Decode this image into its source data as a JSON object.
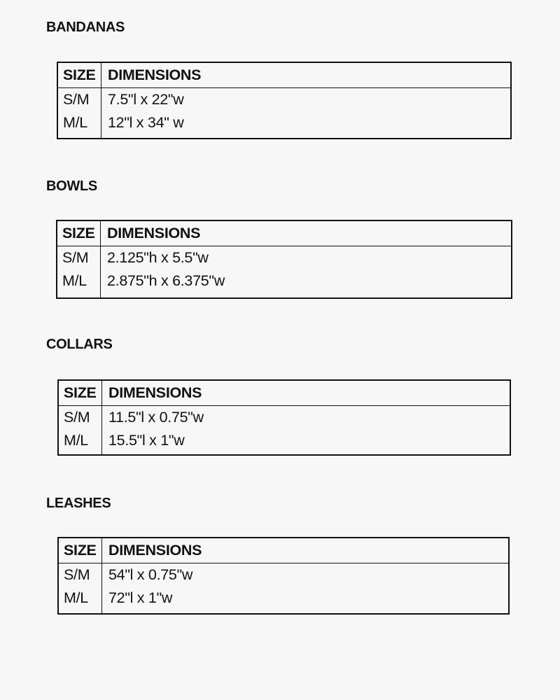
{
  "sections": [
    {
      "title": "BANDANAS",
      "headers": [
        "SIZE",
        "DIMENSIONS"
      ],
      "rows": [
        [
          "S/M",
          "7.5\"l x 22\"w"
        ],
        [
          "M/L",
          "12\"l x 34\" w"
        ]
      ]
    },
    {
      "title": "BOWLS",
      "headers": [
        "SIZE",
        "DIMENSIONS"
      ],
      "rows": [
        [
          "S/M",
          "2.125\"h x 5.5\"w"
        ],
        [
          "M/L",
          "2.875\"h x 6.375\"w"
        ]
      ]
    },
    {
      "title": "COLLARS",
      "headers": [
        "SIZE",
        "DIMENSIONS"
      ],
      "rows": [
        [
          "S/M",
          "11.5\"l x 0.75\"w"
        ],
        [
          "M/L",
          "15.5\"l x 1\"w"
        ]
      ]
    },
    {
      "title": "LEASHES",
      "headers": [
        "SIZE",
        "DIMENSIONS"
      ],
      "rows": [
        [
          "S/M",
          "54\"l x 0.75\"w"
        ],
        [
          "M/L",
          "72\"l x 1\"w"
        ]
      ]
    }
  ]
}
